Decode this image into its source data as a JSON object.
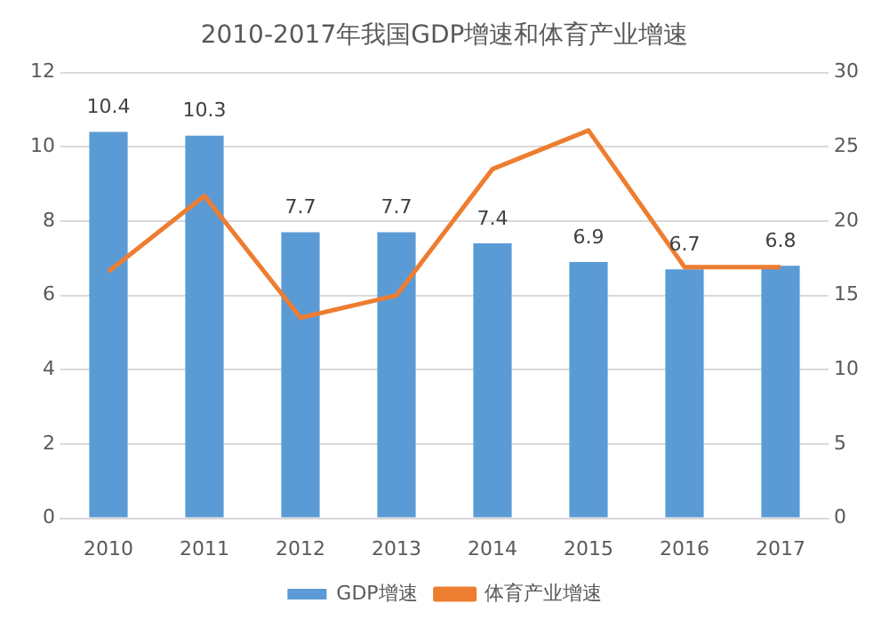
{
  "chart_data": {
    "type": "bar",
    "title": "2010-2017年我国GDP增速和体育产业增速",
    "categories": [
      "2010",
      "2011",
      "2012",
      "2013",
      "2014",
      "2015",
      "2016",
      "2017"
    ],
    "series": [
      {
        "name": "GDP增速",
        "color": "#5b9bd5",
        "values": [
          10.4,
          10.3,
          7.7,
          7.7,
          7.4,
          6.9,
          6.7,
          6.8
        ],
        "value_labels": [
          "10.4",
          "10.3",
          "7.7",
          "7.7",
          "7.4",
          "6.9",
          "6.7",
          "6.8"
        ]
      },
      {
        "name": "体育产业增速",
        "type": "line",
        "axis": "y2",
        "color": "#ed7d31",
        "values": [
          16.6,
          21.7,
          13.5,
          15,
          23.5,
          26.1,
          16.9,
          16.9
        ]
      }
    ],
    "ylim": [
      0,
      12
    ],
    "yticks": [
      0,
      2,
      4,
      6,
      8,
      10,
      12
    ],
    "y2lim": [
      0,
      30
    ],
    "y2ticks": [
      0,
      5,
      10,
      15,
      20,
      25,
      30
    ],
    "grid": "y",
    "legend": "bottom",
    "marker": "none"
  }
}
